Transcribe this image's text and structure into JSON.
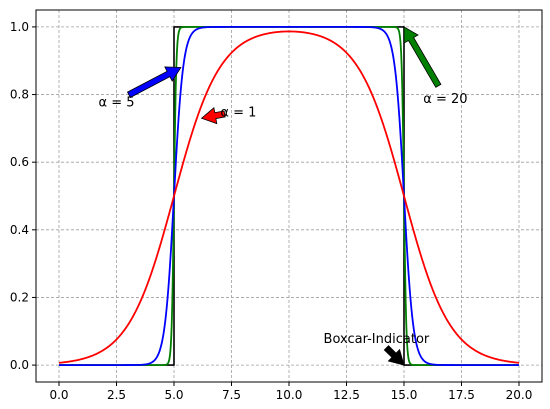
{
  "chart_data": {
    "type": "line",
    "title": "",
    "xlabel": "",
    "ylabel": "",
    "xlim": [
      -1,
      21
    ],
    "ylim": [
      -0.05,
      1.05
    ],
    "grid": true,
    "x_ticks": [
      0.0,
      2.5,
      5.0,
      7.5,
      10.0,
      12.5,
      15.0,
      17.5,
      20.0
    ],
    "x_tick_labels": [
      "0.0",
      "2.5",
      "5.0",
      "7.5",
      "10.0",
      "12.5",
      "15.0",
      "17.5",
      "20.0"
    ],
    "y_ticks": [
      0.0,
      0.2,
      0.4,
      0.6,
      0.8,
      1.0
    ],
    "y_tick_labels": [
      "0.0",
      "0.2",
      "0.4",
      "0.6",
      "0.8",
      "1.0"
    ],
    "interval": [
      5,
      15
    ],
    "x_range": [
      0,
      20
    ],
    "series": [
      {
        "id": "boxcar",
        "name": "Boxcar-Indicator",
        "kind": "boxcar",
        "color": "#000000"
      },
      {
        "id": "alpha20",
        "name": "α = 20",
        "kind": "smooth",
        "alpha": 20,
        "color": "#008000"
      },
      {
        "id": "alpha5",
        "name": "α = 5",
        "kind": "smooth",
        "alpha": 5,
        "color": "#0000ff"
      },
      {
        "id": "alpha1",
        "name": "α = 1",
        "kind": "smooth",
        "alpha": 1,
        "color": "#ff0000"
      }
    ],
    "annotations": [
      {
        "id": "a5",
        "text": "α = 5",
        "color": "#0000ff",
        "xy": [
          5.3,
          0.88
        ],
        "xytext": [
          2.5,
          0.78
        ]
      },
      {
        "id": "a1",
        "text": "α = 1",
        "color": "#ff0000",
        "xy": [
          6.2,
          0.73
        ],
        "xytext": [
          7.8,
          0.75
        ]
      },
      {
        "id": "a20",
        "text": "α = 20",
        "color": "#008000",
        "xy": [
          15.0,
          1.0
        ],
        "xytext": [
          16.8,
          0.79
        ]
      },
      {
        "id": "abox",
        "text": "Boxcar-Indicator",
        "color": "#000000",
        "xy": [
          15.0,
          0.0
        ],
        "xytext": [
          13.8,
          0.08
        ]
      }
    ]
  }
}
